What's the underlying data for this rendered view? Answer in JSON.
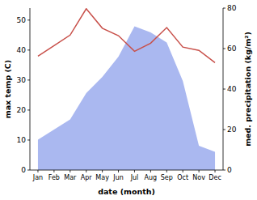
{
  "chart_data": {
    "type": "line",
    "categories": [
      "Jan",
      "Feb",
      "Mar",
      "Apr",
      "May",
      "Jun",
      "Jul",
      "Aug",
      "Sep",
      "Oct",
      "Nov",
      "Dec"
    ],
    "x_label": "date (month)",
    "y_label": "max temp (C)",
    "y2_label": "med. precipitation (kg/m²)",
    "ylim": [
      0,
      54
    ],
    "yticks": [
      0,
      10,
      20,
      30,
      40,
      50
    ],
    "y2lim": [
      0,
      80
    ],
    "y2ticks": [
      0,
      20,
      40,
      60,
      80
    ],
    "grid": false,
    "series": [
      {
        "name": "max temp",
        "type": "line",
        "color": "#c8504a",
        "axis": "y",
        "values": [
          38.0,
          41.5,
          45.0,
          53.8,
          47.3,
          44.8,
          39.6,
          42.3,
          47.5,
          41.0,
          39.9,
          35.8
        ]
      },
      {
        "name": "med. precipitation",
        "type": "area",
        "color": "#aab8f0",
        "axis": "y2",
        "values": [
          15,
          20,
          25,
          38,
          46,
          56,
          71,
          68,
          63,
          44,
          12,
          9
        ]
      }
    ]
  }
}
